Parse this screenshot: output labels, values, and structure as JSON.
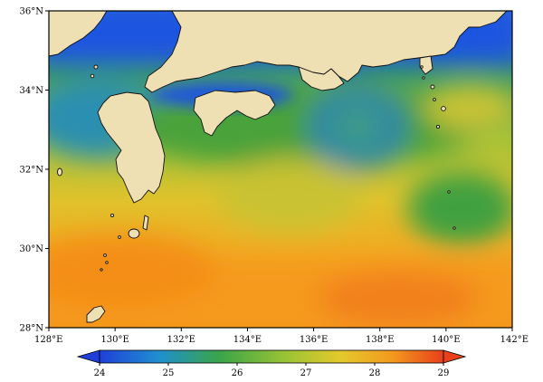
{
  "map": {
    "lon_range": [
      128,
      142
    ],
    "lat_range": [
      28,
      36
    ],
    "x_ticks": [
      {
        "value": 128,
        "label": "128°E"
      },
      {
        "value": 130,
        "label": "130°E"
      },
      {
        "value": 132,
        "label": "132°E"
      },
      {
        "value": 134,
        "label": "134°E"
      },
      {
        "value": 136,
        "label": "136°E"
      },
      {
        "value": 138,
        "label": "138°E"
      },
      {
        "value": 140,
        "label": "140°E"
      },
      {
        "value": 142,
        "label": "142°E"
      }
    ],
    "y_ticks": [
      {
        "value": 36,
        "label": "36°N"
      },
      {
        "value": 34,
        "label": "34°N"
      },
      {
        "value": 32,
        "label": "32°N"
      },
      {
        "value": 30,
        "label": "30°N"
      },
      {
        "value": 28,
        "label": "28°N"
      }
    ],
    "colors": {
      "land": "#efe0b4",
      "coast": "#111111",
      "cold": "#1a55e0",
      "green": "#4aa23a",
      "yellow": "#d7c534",
      "orange": "#f59a1a"
    }
  },
  "colorbar": {
    "min": 24,
    "max": 29,
    "ticks": [
      "24",
      "25",
      "26",
      "27",
      "28",
      "29"
    ],
    "extend": "both",
    "stops": [
      "#1f3fd8",
      "#1f8fd0",
      "#3aa548",
      "#9fc434",
      "#e3c92c",
      "#f39a1e",
      "#e8401a"
    ]
  }
}
